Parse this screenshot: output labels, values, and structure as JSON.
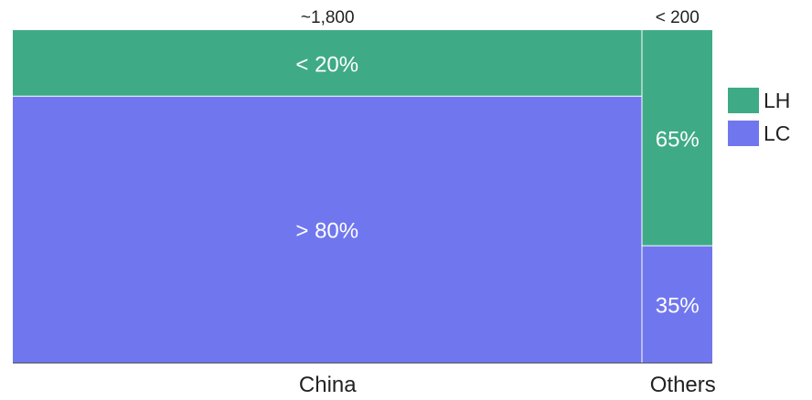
{
  "chart_data": {
    "type": "mekko",
    "categories": [
      "China",
      "Others"
    ],
    "category_totals": [
      1800,
      200
    ],
    "category_total_labels": [
      "~1,800",
      "< 200"
    ],
    "series": [
      {
        "name": "LH",
        "color": "#3fab86",
        "values": [
          20,
          65
        ],
        "labels": [
          "< 20%",
          "65%"
        ]
      },
      {
        "name": "LC",
        "color": "#7077ee",
        "values": [
          80,
          35
        ],
        "labels": [
          "> 80%",
          "35%"
        ]
      }
    ],
    "ylim": [
      0,
      100
    ],
    "xlabel": "",
    "ylabel": "",
    "legend_position": "right",
    "grid": false
  }
}
